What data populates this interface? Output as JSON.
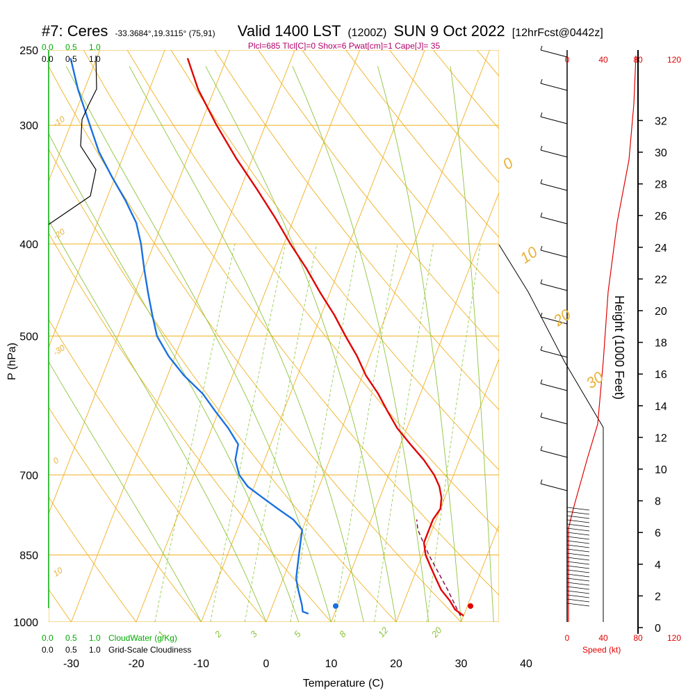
{
  "chart_data": {
    "type": "line",
    "title": {
      "station": "#7: Ceres",
      "coords": "-33.3684°,19.3115° (75,91)",
      "valid": "Valid 1400 LST",
      "utc": "(1200Z)",
      "date": "SUN 9 Oct 2022",
      "forecast": "[12hrFcst@0442z]"
    },
    "indices_line": "Plcl=685 Tlcl[C]=0 Shox=6 Pwat[cm]=1 Cape[J]= 35",
    "xlabel": "Temperature (C)",
    "ylabel": "P (hPa)",
    "height_label": "Height (1000 Feet)",
    "x_ticks": [
      "-30",
      "-20",
      "-10",
      "0",
      "10",
      "20",
      "30",
      "40"
    ],
    "p_ticks": [
      "250",
      "300",
      "400",
      "500",
      "700",
      "850",
      "1000"
    ],
    "height_ticks": [
      "0",
      "2",
      "4",
      "6",
      "8",
      "10",
      "12",
      "14",
      "16",
      "18",
      "20",
      "22",
      "24",
      "26",
      "28",
      "30",
      "32"
    ],
    "cloud_scale": {
      "green": [
        "0.0",
        "0.5",
        "1.0"
      ],
      "black": [
        "0.0",
        "0.5",
        "1.0"
      ],
      "cloudwater_label": "CloudWater (g/Kg)",
      "cloudiness_label": "Grid-Scale Cloudiness"
    },
    "speed_scale": {
      "ticks": [
        "0",
        "40",
        "80",
        "120"
      ],
      "label": "Speed (kt)"
    },
    "isotherm_labels": [
      "0",
      "10",
      "20",
      "30",
      "-10",
      "-20",
      "-30",
      "0",
      "10"
    ],
    "mixing_ratio_labels": [
      "1",
      "2",
      "3",
      "5",
      "8",
      "12",
      "20"
    ],
    "surface_temp": 31,
    "surface_dewpoint": 10.5,
    "temperature_profile": [
      {
        "p": 985,
        "t": 30
      },
      {
        "p": 970,
        "t": 28.3
      },
      {
        "p": 950,
        "t": 27
      },
      {
        "p": 925,
        "t": 25
      },
      {
        "p": 900,
        "t": 23.5
      },
      {
        "p": 875,
        "t": 22
      },
      {
        "p": 850,
        "t": 20.5
      },
      {
        "p": 825,
        "t": 19.5
      },
      {
        "p": 800,
        "t": 19.5
      },
      {
        "p": 780,
        "t": 19.5
      },
      {
        "p": 760,
        "t": 20
      },
      {
        "p": 740,
        "t": 19.5
      },
      {
        "p": 720,
        "t": 18.5
      },
      {
        "p": 700,
        "t": 17
      },
      {
        "p": 675,
        "t": 14.5
      },
      {
        "p": 650,
        "t": 11.5
      },
      {
        "p": 625,
        "t": 8.5
      },
      {
        "p": 600,
        "t": 6
      },
      {
        "p": 575,
        "t": 3.5
      },
      {
        "p": 550,
        "t": 0.5
      },
      {
        "p": 525,
        "t": -2
      },
      {
        "p": 500,
        "t": -5
      },
      {
        "p": 475,
        "t": -8
      },
      {
        "p": 450,
        "t": -11.5
      },
      {
        "p": 425,
        "t": -15
      },
      {
        "p": 400,
        "t": -19
      },
      {
        "p": 375,
        "t": -23
      },
      {
        "p": 350,
        "t": -27.5
      },
      {
        "p": 325,
        "t": -32.5
      },
      {
        "p": 300,
        "t": -37.5
      },
      {
        "p": 275,
        "t": -42.5
      },
      {
        "p": 255,
        "t": -46
      }
    ],
    "dewpoint_profile": [
      {
        "p": 980,
        "t": 6
      },
      {
        "p": 975,
        "t": 5
      },
      {
        "p": 960,
        "t": 4.5
      },
      {
        "p": 925,
        "t": 3
      },
      {
        "p": 900,
        "t": 2
      },
      {
        "p": 875,
        "t": 1.5
      },
      {
        "p": 850,
        "t": 1
      },
      {
        "p": 825,
        "t": 0.5
      },
      {
        "p": 800,
        "t": 0
      },
      {
        "p": 780,
        "t": -2
      },
      {
        "p": 760,
        "t": -5
      },
      {
        "p": 740,
        "t": -8
      },
      {
        "p": 720,
        "t": -11
      },
      {
        "p": 700,
        "t": -13
      },
      {
        "p": 675,
        "t": -14.5
      },
      {
        "p": 650,
        "t": -15
      },
      {
        "p": 625,
        "t": -17.5
      },
      {
        "p": 600,
        "t": -20.5
      },
      {
        "p": 575,
        "t": -23.5
      },
      {
        "p": 550,
        "t": -27.5
      },
      {
        "p": 525,
        "t": -31
      },
      {
        "p": 500,
        "t": -34
      },
      {
        "p": 475,
        "t": -36
      },
      {
        "p": 450,
        "t": -38
      },
      {
        "p": 425,
        "t": -40
      },
      {
        "p": 400,
        "t": -42
      },
      {
        "p": 380,
        "t": -44
      },
      {
        "p": 360,
        "t": -47
      },
      {
        "p": 340,
        "t": -50.5
      },
      {
        "p": 320,
        "t": -54
      },
      {
        "p": 300,
        "t": -57
      },
      {
        "p": 275,
        "t": -61
      },
      {
        "p": 255,
        "t": -64
      }
    ],
    "parcel_profile": [
      {
        "p": 985,
        "t": 29.5
      },
      {
        "p": 925,
        "t": 26
      },
      {
        "p": 850,
        "t": 21
      },
      {
        "p": 800,
        "t": 17.8
      },
      {
        "p": 780,
        "t": 17
      }
    ]
  },
  "colors": {
    "temperature": "#e00000",
    "dewpoint": "#1870e0",
    "isotherm": "#f0b020",
    "dry_adiabat": "#f0b020",
    "moist_adiabat": "#8cc43c",
    "mixing_ratio": "#8cc43c",
    "parcel": "#800040",
    "indices": "#b0006a",
    "cloud_green": "#00aa00",
    "speed_red": "#e00000"
  }
}
